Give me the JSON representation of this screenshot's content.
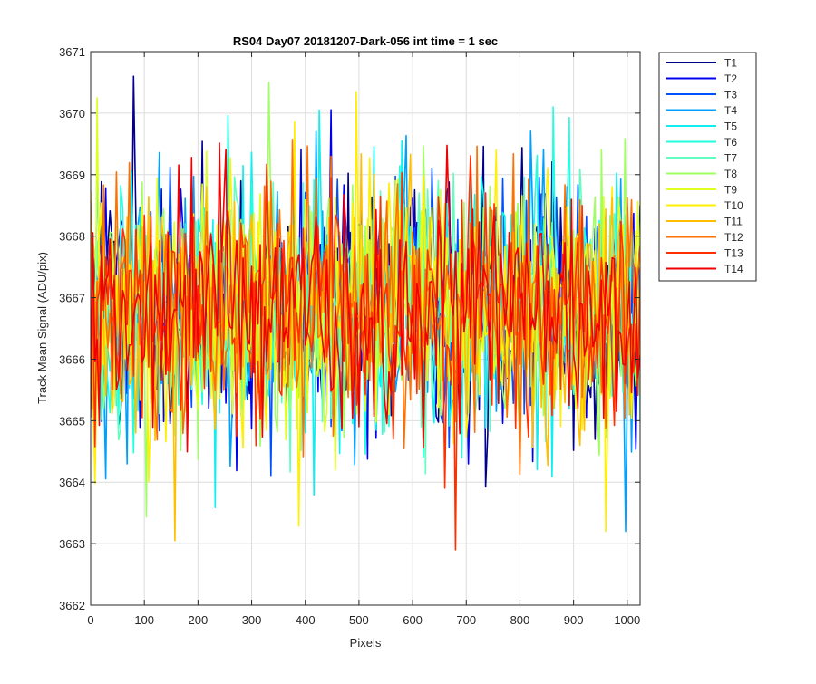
{
  "figure": {
    "background": "#ffffff"
  },
  "chart_data": {
    "type": "line",
    "title": "RS04 Day07 20181207-Dark-056 int time = 1 sec",
    "xlabel": "Pixels",
    "ylabel": "Track Mean Signal (ADU/pix)",
    "xlim": [
      0,
      1024
    ],
    "ylim": [
      3662,
      3671
    ],
    "xticks": [
      0,
      100,
      200,
      300,
      400,
      500,
      600,
      700,
      800,
      900,
      1000
    ],
    "yticks": [
      3662,
      3663,
      3664,
      3665,
      3666,
      3667,
      3668,
      3669,
      3670,
      3671
    ],
    "grid": true,
    "legend_position": "outside-top-right",
    "x_step": 4,
    "typical_range": [
      3665,
      3669
    ],
    "series": [
      {
        "name": "T1",
        "color": "#00008F",
        "mean": 3666.8,
        "sd": 1.0
      },
      {
        "name": "T2",
        "color": "#0000EF",
        "mean": 3666.9,
        "sd": 1.0
      },
      {
        "name": "T3",
        "color": "#0050FF",
        "mean": 3666.9,
        "sd": 1.0
      },
      {
        "name": "T4",
        "color": "#00A0FF",
        "mean": 3666.8,
        "sd": 1.0
      },
      {
        "name": "T5",
        "color": "#10EFEF",
        "mean": 3666.8,
        "sd": 1.0
      },
      {
        "name": "T6",
        "color": "#20FFDF",
        "mean": 3666.9,
        "sd": 1.0
      },
      {
        "name": "T7",
        "color": "#60FFC0",
        "mean": 3666.9,
        "sd": 1.0
      },
      {
        "name": "T8",
        "color": "#9FFF60",
        "mean": 3666.8,
        "sd": 1.0
      },
      {
        "name": "T9",
        "color": "#DFFF20",
        "mean": 3666.8,
        "sd": 1.0
      },
      {
        "name": "T10",
        "color": "#FFEF00",
        "mean": 3666.9,
        "sd": 1.0
      },
      {
        "name": "T11",
        "color": "#FFBF00",
        "mean": 3666.8,
        "sd": 1.0
      },
      {
        "name": "T12",
        "color": "#FF7000",
        "mean": 3666.8,
        "sd": 1.0
      },
      {
        "name": "T13",
        "color": "#FF3000",
        "mean": 3666.8,
        "sd": 0.95
      },
      {
        "name": "T14",
        "color": "#F00000",
        "mean": 3666.8,
        "sd": 0.95
      }
    ],
    "peaks": [
      {
        "series": "T1",
        "x": 80,
        "y": 3670.6
      },
      {
        "series": "T10",
        "x": 495,
        "y": 3670.35
      },
      {
        "series": "T9",
        "x": 12,
        "y": 3670.25
      },
      {
        "series": "T13",
        "x": 680,
        "y": 3662.9
      },
      {
        "series": "T11",
        "x": 157,
        "y": 3663.05
      },
      {
        "series": "T4",
        "x": 997,
        "y": 3663.2
      },
      {
        "series": "T6",
        "x": 862,
        "y": 3670.1
      },
      {
        "series": "T5",
        "x": 426,
        "y": 3670.05
      }
    ]
  }
}
